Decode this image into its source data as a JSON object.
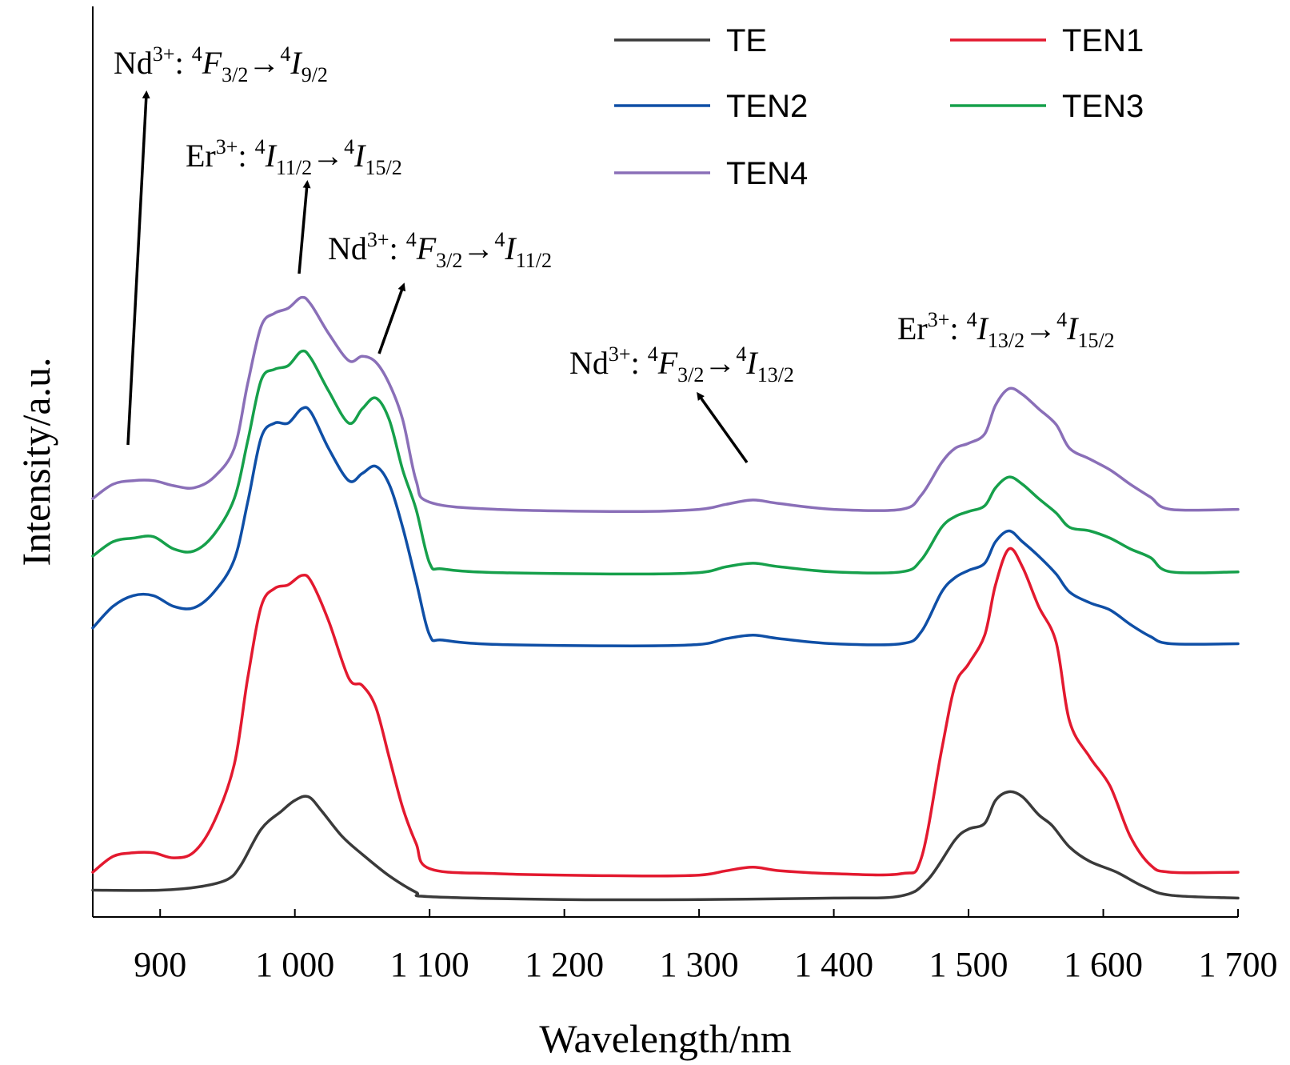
{
  "chart_data": {
    "type": "line",
    "title": "",
    "xlabel": "Wavelength/nm",
    "ylabel": "Intensity/a.u.",
    "xlim": [
      850,
      1700
    ],
    "ylim": [
      0,
      1
    ],
    "x_ticks": [
      900,
      1000,
      1100,
      1200,
      1300,
      1400,
      1500,
      1600,
      1700
    ],
    "x_tick_labels": [
      "900",
      "1 000",
      "1 100",
      "1 200",
      "1 300",
      "1 400",
      "1 500",
      "1 600",
      "1 700"
    ],
    "y_ticks_visible": false,
    "grid": false,
    "legend_position": "top-right",
    "series": [
      {
        "name": "TE",
        "color": "#3a3a3a",
        "points": [
          [
            850,
            0.015
          ],
          [
            900,
            0.015
          ],
          [
            930,
            0.02
          ],
          [
            950,
            0.03
          ],
          [
            960,
            0.05
          ],
          [
            975,
            0.1
          ],
          [
            990,
            0.125
          ],
          [
            1000,
            0.14
          ],
          [
            1010,
            0.145
          ],
          [
            1020,
            0.125
          ],
          [
            1035,
            0.09
          ],
          [
            1050,
            0.065
          ],
          [
            1070,
            0.035
          ],
          [
            1090,
            0.012
          ],
          [
            1100,
            0.006
          ],
          [
            1200,
            0.002
          ],
          [
            1300,
            0.002
          ],
          [
            1400,
            0.004
          ],
          [
            1450,
            0.007
          ],
          [
            1470,
            0.03
          ],
          [
            1490,
            0.085
          ],
          [
            1500,
            0.1
          ],
          [
            1512,
            0.108
          ],
          [
            1520,
            0.14
          ],
          [
            1530,
            0.152
          ],
          [
            1540,
            0.145
          ],
          [
            1552,
            0.12
          ],
          [
            1562,
            0.105
          ],
          [
            1575,
            0.075
          ],
          [
            1590,
            0.055
          ],
          [
            1610,
            0.04
          ],
          [
            1630,
            0.02
          ],
          [
            1650,
            0.008
          ],
          [
            1700,
            0.004
          ]
        ]
      },
      {
        "name": "TEN1",
        "color": "#e3192f",
        "points": [
          [
            850,
            0.04
          ],
          [
            865,
            0.062
          ],
          [
            880,
            0.067
          ],
          [
            895,
            0.067
          ],
          [
            910,
            0.06
          ],
          [
            925,
            0.068
          ],
          [
            940,
            0.11
          ],
          [
            955,
            0.19
          ],
          [
            965,
            0.31
          ],
          [
            975,
            0.41
          ],
          [
            985,
            0.435
          ],
          [
            995,
            0.44
          ],
          [
            1005,
            0.453
          ],
          [
            1012,
            0.445
          ],
          [
            1025,
            0.39
          ],
          [
            1040,
            0.31
          ],
          [
            1050,
            0.3
          ],
          [
            1060,
            0.27
          ],
          [
            1070,
            0.2
          ],
          [
            1080,
            0.13
          ],
          [
            1090,
            0.08
          ],
          [
            1100,
            0.045
          ],
          [
            1150,
            0.038
          ],
          [
            1250,
            0.035
          ],
          [
            1300,
            0.036
          ],
          [
            1320,
            0.042
          ],
          [
            1340,
            0.047
          ],
          [
            1360,
            0.042
          ],
          [
            1400,
            0.038
          ],
          [
            1450,
            0.038
          ],
          [
            1465,
            0.06
          ],
          [
            1480,
            0.21
          ],
          [
            1490,
            0.3
          ],
          [
            1500,
            0.33
          ],
          [
            1512,
            0.37
          ],
          [
            1520,
            0.44
          ],
          [
            1530,
            0.49
          ],
          [
            1540,
            0.465
          ],
          [
            1552,
            0.41
          ],
          [
            1565,
            0.36
          ],
          [
            1575,
            0.25
          ],
          [
            1590,
            0.2
          ],
          [
            1605,
            0.16
          ],
          [
            1620,
            0.09
          ],
          [
            1635,
            0.05
          ],
          [
            1650,
            0.04
          ],
          [
            1700,
            0.04
          ]
        ]
      },
      {
        "name": "TEN2",
        "color": "#0f4fa6",
        "points": [
          [
            850,
            0.38
          ],
          [
            865,
            0.41
          ],
          [
            880,
            0.425
          ],
          [
            895,
            0.425
          ],
          [
            910,
            0.41
          ],
          [
            925,
            0.408
          ],
          [
            940,
            0.43
          ],
          [
            955,
            0.475
          ],
          [
            965,
            0.555
          ],
          [
            975,
            0.645
          ],
          [
            985,
            0.665
          ],
          [
            995,
            0.665
          ],
          [
            1005,
            0.685
          ],
          [
            1012,
            0.68
          ],
          [
            1025,
            0.63
          ],
          [
            1040,
            0.585
          ],
          [
            1050,
            0.595
          ],
          [
            1060,
            0.605
          ],
          [
            1070,
            0.58
          ],
          [
            1080,
            0.52
          ],
          [
            1090,
            0.445
          ],
          [
            1100,
            0.37
          ],
          [
            1110,
            0.363
          ],
          [
            1150,
            0.357
          ],
          [
            1250,
            0.355
          ],
          [
            1300,
            0.357
          ],
          [
            1320,
            0.365
          ],
          [
            1340,
            0.37
          ],
          [
            1360,
            0.365
          ],
          [
            1400,
            0.358
          ],
          [
            1450,
            0.358
          ],
          [
            1465,
            0.375
          ],
          [
            1480,
            0.43
          ],
          [
            1490,
            0.45
          ],
          [
            1500,
            0.46
          ],
          [
            1512,
            0.47
          ],
          [
            1520,
            0.5
          ],
          [
            1530,
            0.515
          ],
          [
            1540,
            0.5
          ],
          [
            1552,
            0.48
          ],
          [
            1565,
            0.455
          ],
          [
            1575,
            0.43
          ],
          [
            1590,
            0.415
          ],
          [
            1605,
            0.405
          ],
          [
            1620,
            0.385
          ],
          [
            1635,
            0.368
          ],
          [
            1650,
            0.358
          ],
          [
            1700,
            0.358
          ]
        ]
      },
      {
        "name": "TEN3",
        "color": "#16a04b",
        "points": [
          [
            850,
            0.48
          ],
          [
            865,
            0.5
          ],
          [
            880,
            0.505
          ],
          [
            895,
            0.507
          ],
          [
            910,
            0.49
          ],
          [
            925,
            0.487
          ],
          [
            940,
            0.51
          ],
          [
            955,
            0.56
          ],
          [
            965,
            0.64
          ],
          [
            975,
            0.725
          ],
          [
            985,
            0.74
          ],
          [
            995,
            0.745
          ],
          [
            1005,
            0.765
          ],
          [
            1012,
            0.755
          ],
          [
            1025,
            0.71
          ],
          [
            1040,
            0.665
          ],
          [
            1050,
            0.685
          ],
          [
            1060,
            0.7
          ],
          [
            1070,
            0.67
          ],
          [
            1080,
            0.6
          ],
          [
            1090,
            0.545
          ],
          [
            1100,
            0.47
          ],
          [
            1110,
            0.462
          ],
          [
            1150,
            0.457
          ],
          [
            1250,
            0.455
          ],
          [
            1300,
            0.457
          ],
          [
            1320,
            0.465
          ],
          [
            1340,
            0.47
          ],
          [
            1360,
            0.465
          ],
          [
            1400,
            0.458
          ],
          [
            1450,
            0.458
          ],
          [
            1465,
            0.475
          ],
          [
            1480,
            0.52
          ],
          [
            1490,
            0.535
          ],
          [
            1500,
            0.542
          ],
          [
            1512,
            0.55
          ],
          [
            1520,
            0.575
          ],
          [
            1530,
            0.59
          ],
          [
            1540,
            0.58
          ],
          [
            1552,
            0.56
          ],
          [
            1565,
            0.54
          ],
          [
            1575,
            0.52
          ],
          [
            1590,
            0.515
          ],
          [
            1605,
            0.505
          ],
          [
            1620,
            0.49
          ],
          [
            1635,
            0.478
          ],
          [
            1650,
            0.458
          ],
          [
            1700,
            0.458
          ]
        ]
      },
      {
        "name": "TEN4",
        "color": "#8a6fb8",
        "points": [
          [
            850,
            0.56
          ],
          [
            865,
            0.58
          ],
          [
            880,
            0.585
          ],
          [
            895,
            0.585
          ],
          [
            910,
            0.578
          ],
          [
            925,
            0.575
          ],
          [
            940,
            0.59
          ],
          [
            955,
            0.63
          ],
          [
            965,
            0.72
          ],
          [
            975,
            0.8
          ],
          [
            985,
            0.818
          ],
          [
            995,
            0.825
          ],
          [
            1005,
            0.84
          ],
          [
            1012,
            0.83
          ],
          [
            1025,
            0.79
          ],
          [
            1040,
            0.752
          ],
          [
            1050,
            0.758
          ],
          [
            1060,
            0.75
          ],
          [
            1070,
            0.72
          ],
          [
            1080,
            0.67
          ],
          [
            1090,
            0.585
          ],
          [
            1100,
            0.555
          ],
          [
            1150,
            0.545
          ],
          [
            1250,
            0.542
          ],
          [
            1300,
            0.545
          ],
          [
            1320,
            0.552
          ],
          [
            1340,
            0.558
          ],
          [
            1360,
            0.553
          ],
          [
            1400,
            0.545
          ],
          [
            1450,
            0.545
          ],
          [
            1465,
            0.565
          ],
          [
            1480,
            0.61
          ],
          [
            1490,
            0.63
          ],
          [
            1500,
            0.637
          ],
          [
            1512,
            0.65
          ],
          [
            1520,
            0.69
          ],
          [
            1530,
            0.713
          ],
          [
            1540,
            0.705
          ],
          [
            1552,
            0.685
          ],
          [
            1565,
            0.663
          ],
          [
            1575,
            0.63
          ],
          [
            1590,
            0.615
          ],
          [
            1605,
            0.6
          ],
          [
            1620,
            0.58
          ],
          [
            1635,
            0.562
          ],
          [
            1650,
            0.545
          ],
          [
            1700,
            0.545
          ]
        ]
      }
    ],
    "annotations": [
      {
        "ion": "Nd",
        "charge": "3+",
        "init_sup": "4",
        "init_sym": "F",
        "init_sub": "3/2",
        "final_sup": "4",
        "final_sym": "I",
        "final_sub": "9/2"
      },
      {
        "ion": "Er",
        "charge": "3+",
        "init_sup": "4",
        "init_sym": "I",
        "init_sub": "11/2",
        "final_sup": "4",
        "final_sym": "I",
        "final_sub": "15/2"
      },
      {
        "ion": "Nd",
        "charge": "3+",
        "init_sup": "4",
        "init_sym": "F",
        "init_sub": "3/2",
        "final_sup": "4",
        "final_sym": "I",
        "final_sub": "11/2"
      },
      {
        "ion": "Nd",
        "charge": "3+",
        "init_sup": "4",
        "init_sym": "F",
        "init_sub": "3/2",
        "final_sup": "4",
        "final_sym": "I",
        "final_sub": "13/2"
      },
      {
        "ion": "Er",
        "charge": "3+",
        "init_sup": "4",
        "init_sym": "I",
        "init_sub": "13/2",
        "final_sup": "4",
        "final_sym": "I",
        "final_sub": "15/2"
      }
    ]
  }
}
